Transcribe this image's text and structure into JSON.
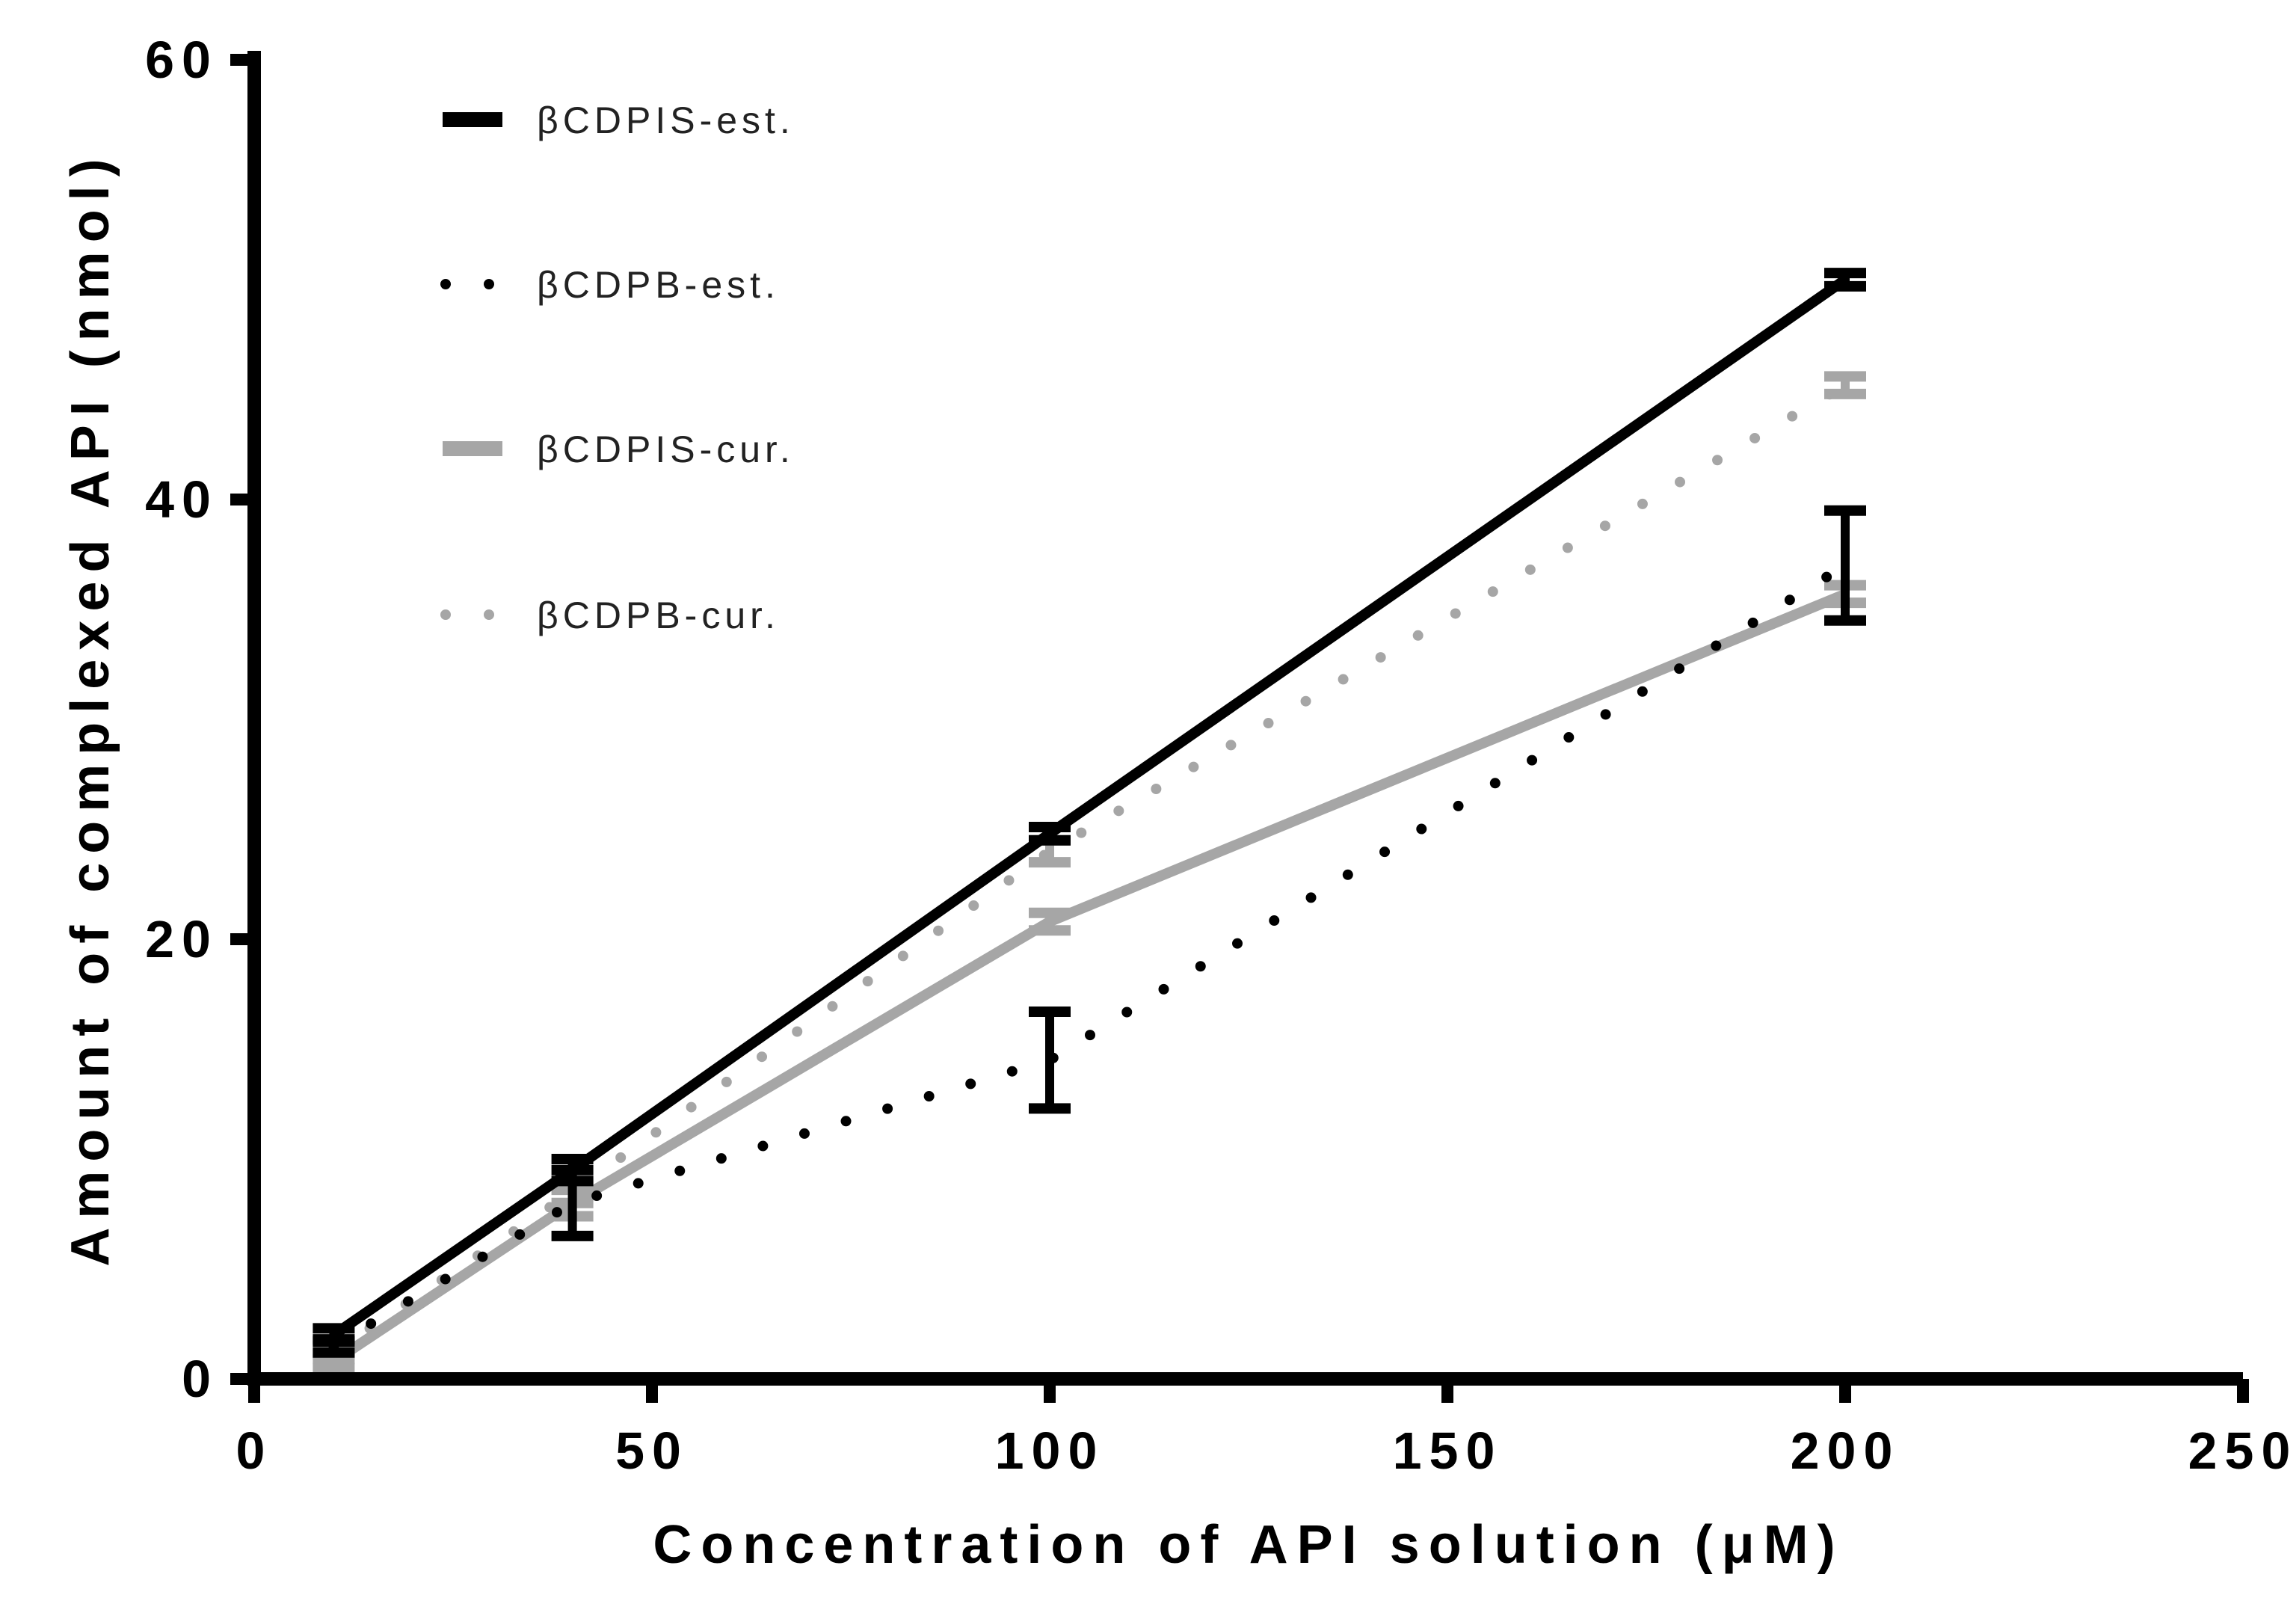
{
  "chart_data": {
    "type": "line",
    "xlabel": "Concentration of API solution (μM)",
    "ylabel": "Amount of complexed API (nmol)",
    "xlim": [
      0,
      250
    ],
    "ylim": [
      0,
      60
    ],
    "xticks": [
      "0",
      "50",
      "100",
      "150",
      "200",
      "250"
    ],
    "yticks": [
      "0",
      "20",
      "40",
      "60"
    ],
    "grid": false,
    "legend_position": "top-left",
    "series": [
      {
        "name": "βCDPIS-est.",
        "style": "solid",
        "color": "#000000",
        "x": [
          10,
          40,
          100,
          200
        ],
        "y": [
          2,
          9.5,
          24.8,
          50
        ],
        "error": [
          0.3,
          0.5,
          0.3,
          0.3
        ]
      },
      {
        "name": "βCDPB-est.",
        "style": "dotted",
        "color": "#000000",
        "x": [
          10,
          40,
          100,
          200
        ],
        "y": [
          1.5,
          8,
          14.5,
          37
        ],
        "error": [
          0.3,
          1.5,
          2.2,
          2.5
        ]
      },
      {
        "name": "βCDPIS-cur.",
        "style": "solid",
        "color": "#a6a6a6",
        "x": [
          10,
          40,
          100,
          200
        ],
        "y": [
          0.8,
          8,
          20.8,
          35.7
        ],
        "error": [
          0.3,
          0.6,
          0.4,
          0.4
        ]
      },
      {
        "name": "βCDPB-cur.",
        "style": "dotted",
        "color": "#a6a6a6",
        "x": [
          10,
          40,
          100,
          200
        ],
        "y": [
          1.2,
          8.5,
          24,
          45.2
        ],
        "error": [
          0.3,
          0.5,
          0.5,
          0.4
        ]
      }
    ]
  }
}
